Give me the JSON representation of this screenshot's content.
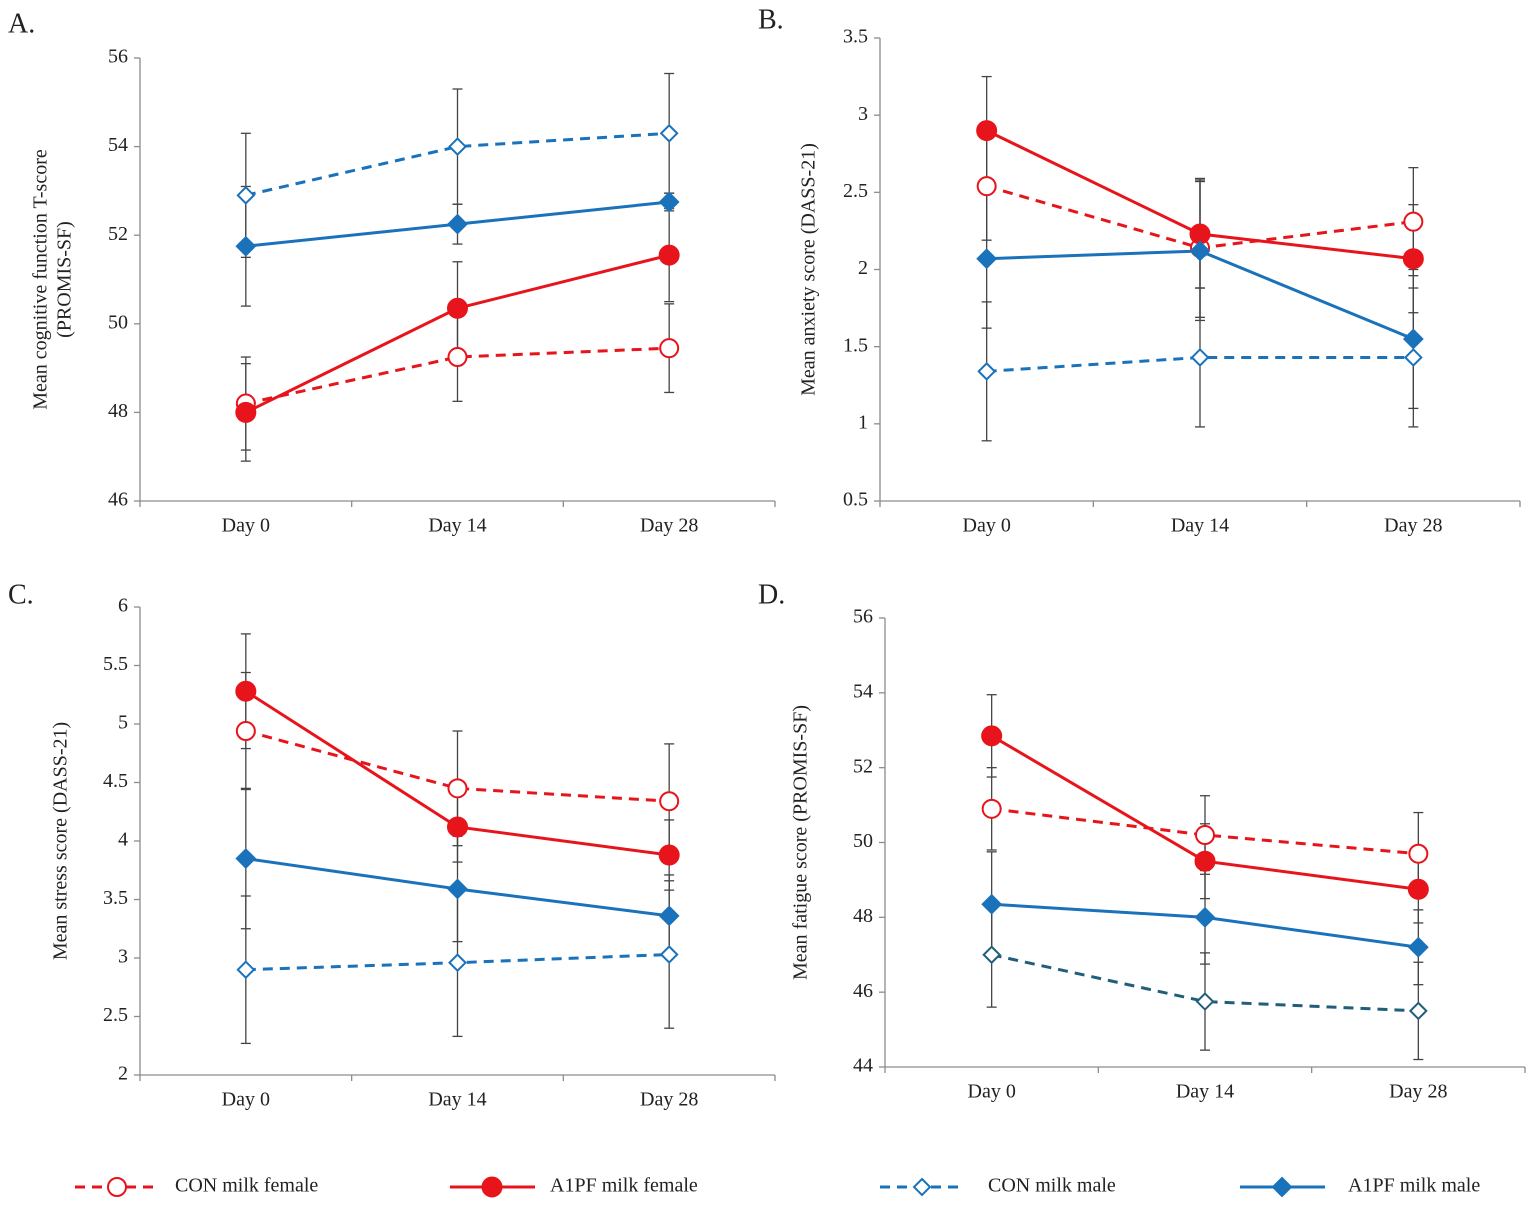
{
  "chart_data": [
    {
      "type": "line",
      "label": "A.",
      "ylabel": [
        "Mean cognitive function T-score",
        "(PROMIS-SF)"
      ],
      "categories": [
        "Day 0",
        "Day 14",
        "Day 28"
      ],
      "ylim": [
        46,
        56
      ],
      "yticks": [
        46,
        48,
        50,
        52,
        54,
        56
      ],
      "series": [
        {
          "name": "CON milk female",
          "color": "#e8141b",
          "style": "dashed",
          "marker": "circle-open",
          "values": [
            48.2,
            49.25,
            49.45
          ],
          "errors": [
            1.05,
            1.0,
            1.0
          ]
        },
        {
          "name": "A1PF milk female",
          "color": "#e8141b",
          "style": "solid",
          "marker": "circle",
          "values": [
            48.0,
            50.35,
            51.55
          ],
          "errors": [
            1.1,
            1.05,
            1.05
          ]
        },
        {
          "name": "CON milk male",
          "color": "#1a72bb",
          "style": "dashed",
          "marker": "diamond-open",
          "values": [
            52.9,
            54.0,
            54.3
          ],
          "errors": [
            1.4,
            1.3,
            1.35
          ]
        },
        {
          "name": "A1PF milk male",
          "color": "#1a72bb",
          "style": "solid",
          "marker": "diamond",
          "values": [
            51.75,
            52.25,
            52.75
          ],
          "errors": [
            1.35,
            0.45,
            0.2
          ]
        }
      ]
    },
    {
      "type": "line",
      "label": "B.",
      "ylabel": [
        "Mean anxiety score (DASS-21)"
      ],
      "categories": [
        "Day 0",
        "Day 14",
        "Day 28"
      ],
      "ylim": [
        0.5,
        3.5
      ],
      "yticks": [
        0.5,
        1,
        1.5,
        2,
        2.5,
        3,
        3.5
      ],
      "series": [
        {
          "name": "CON milk female",
          "color": "#e8141b",
          "style": "dashed",
          "marker": "circle-open",
          "values": [
            2.54,
            2.14,
            2.31
          ],
          "errors": [
            0.35,
            0.45,
            0.35
          ]
        },
        {
          "name": "A1PF milk female",
          "color": "#e8141b",
          "style": "solid",
          "marker": "circle",
          "values": [
            2.9,
            2.23,
            2.07
          ],
          "errors": [
            0.35,
            0.35,
            0.35
          ]
        },
        {
          "name": "CON milk male",
          "color": "#1a72bb",
          "style": "dashed",
          "marker": "diamond-open",
          "values": [
            1.34,
            1.43,
            1.43
          ],
          "errors": [
            0.45,
            0.45,
            0.45
          ]
        },
        {
          "name": "A1PF milk male",
          "color": "#1a72bb",
          "style": "solid",
          "marker": "diamond",
          "values": [
            2.07,
            2.12,
            1.55
          ],
          "errors": [
            0.45,
            0.45,
            0.45
          ]
        }
      ]
    },
    {
      "type": "line",
      "label": "C.",
      "ylabel": [
        "Mean stress score (DASS-21)"
      ],
      "categories": [
        "Day 0",
        "Day 14",
        "Day 28"
      ],
      "ylim": [
        2,
        6
      ],
      "yticks": [
        2,
        2.5,
        3,
        3.5,
        4,
        4.5,
        5,
        5.5,
        6
      ],
      "series": [
        {
          "name": "CON milk female",
          "color": "#e8141b",
          "style": "dashed",
          "marker": "circle-open",
          "values": [
            4.94,
            4.45,
            4.34
          ],
          "errors": [
            0.5,
            0.49,
            0.49
          ]
        },
        {
          "name": "A1PF milk female",
          "color": "#e8141b",
          "style": "solid",
          "marker": "circle",
          "values": [
            5.28,
            4.12,
            3.88
          ],
          "errors": [
            0.49,
            0.3,
            0.3
          ]
        },
        {
          "name": "CON milk male",
          "color": "#1a72bb",
          "style": "dashed",
          "marker": "diamond-open",
          "values": [
            2.9,
            2.96,
            3.03
          ],
          "errors": [
            0.63,
            0.63,
            0.63
          ]
        },
        {
          "name": "A1PF milk male",
          "color": "#1a72bb",
          "style": "solid",
          "marker": "diamond",
          "values": [
            3.85,
            3.59,
            3.36
          ],
          "errors": [
            0.6,
            0.45,
            0.35
          ]
        }
      ]
    },
    {
      "type": "line",
      "label": "D.",
      "ylabel": [
        "Mean fatigue score (PROMIS-SF)"
      ],
      "categories": [
        "Day 0",
        "Day 14",
        "Day 28"
      ],
      "ylim": [
        44,
        56
      ],
      "yticks": [
        44,
        46,
        48,
        50,
        52,
        54,
        56
      ],
      "series": [
        {
          "name": "CON milk female",
          "color": "#e8141b",
          "style": "dashed",
          "marker": "circle-open",
          "values": [
            50.9,
            50.2,
            49.7
          ],
          "errors": [
            1.1,
            1.05,
            1.1
          ]
        },
        {
          "name": "A1PF milk female",
          "color": "#e8141b",
          "style": "solid",
          "marker": "circle",
          "values": [
            52.85,
            49.5,
            48.75
          ],
          "errors": [
            1.1,
            1.0,
            0.9
          ]
        },
        {
          "name": "CON milk male",
          "color": "#215e79",
          "style": "dashed",
          "marker": "diamond-open",
          "values": [
            47.0,
            45.75,
            45.5
          ],
          "errors": [
            1.4,
            1.3,
            1.3
          ]
        },
        {
          "name": "A1PF milk male",
          "color": "#1a72bb",
          "style": "solid",
          "marker": "diamond",
          "values": [
            48.35,
            48.0,
            47.2
          ],
          "errors": [
            1.4,
            1.25,
            1.0
          ]
        }
      ]
    }
  ]
}
